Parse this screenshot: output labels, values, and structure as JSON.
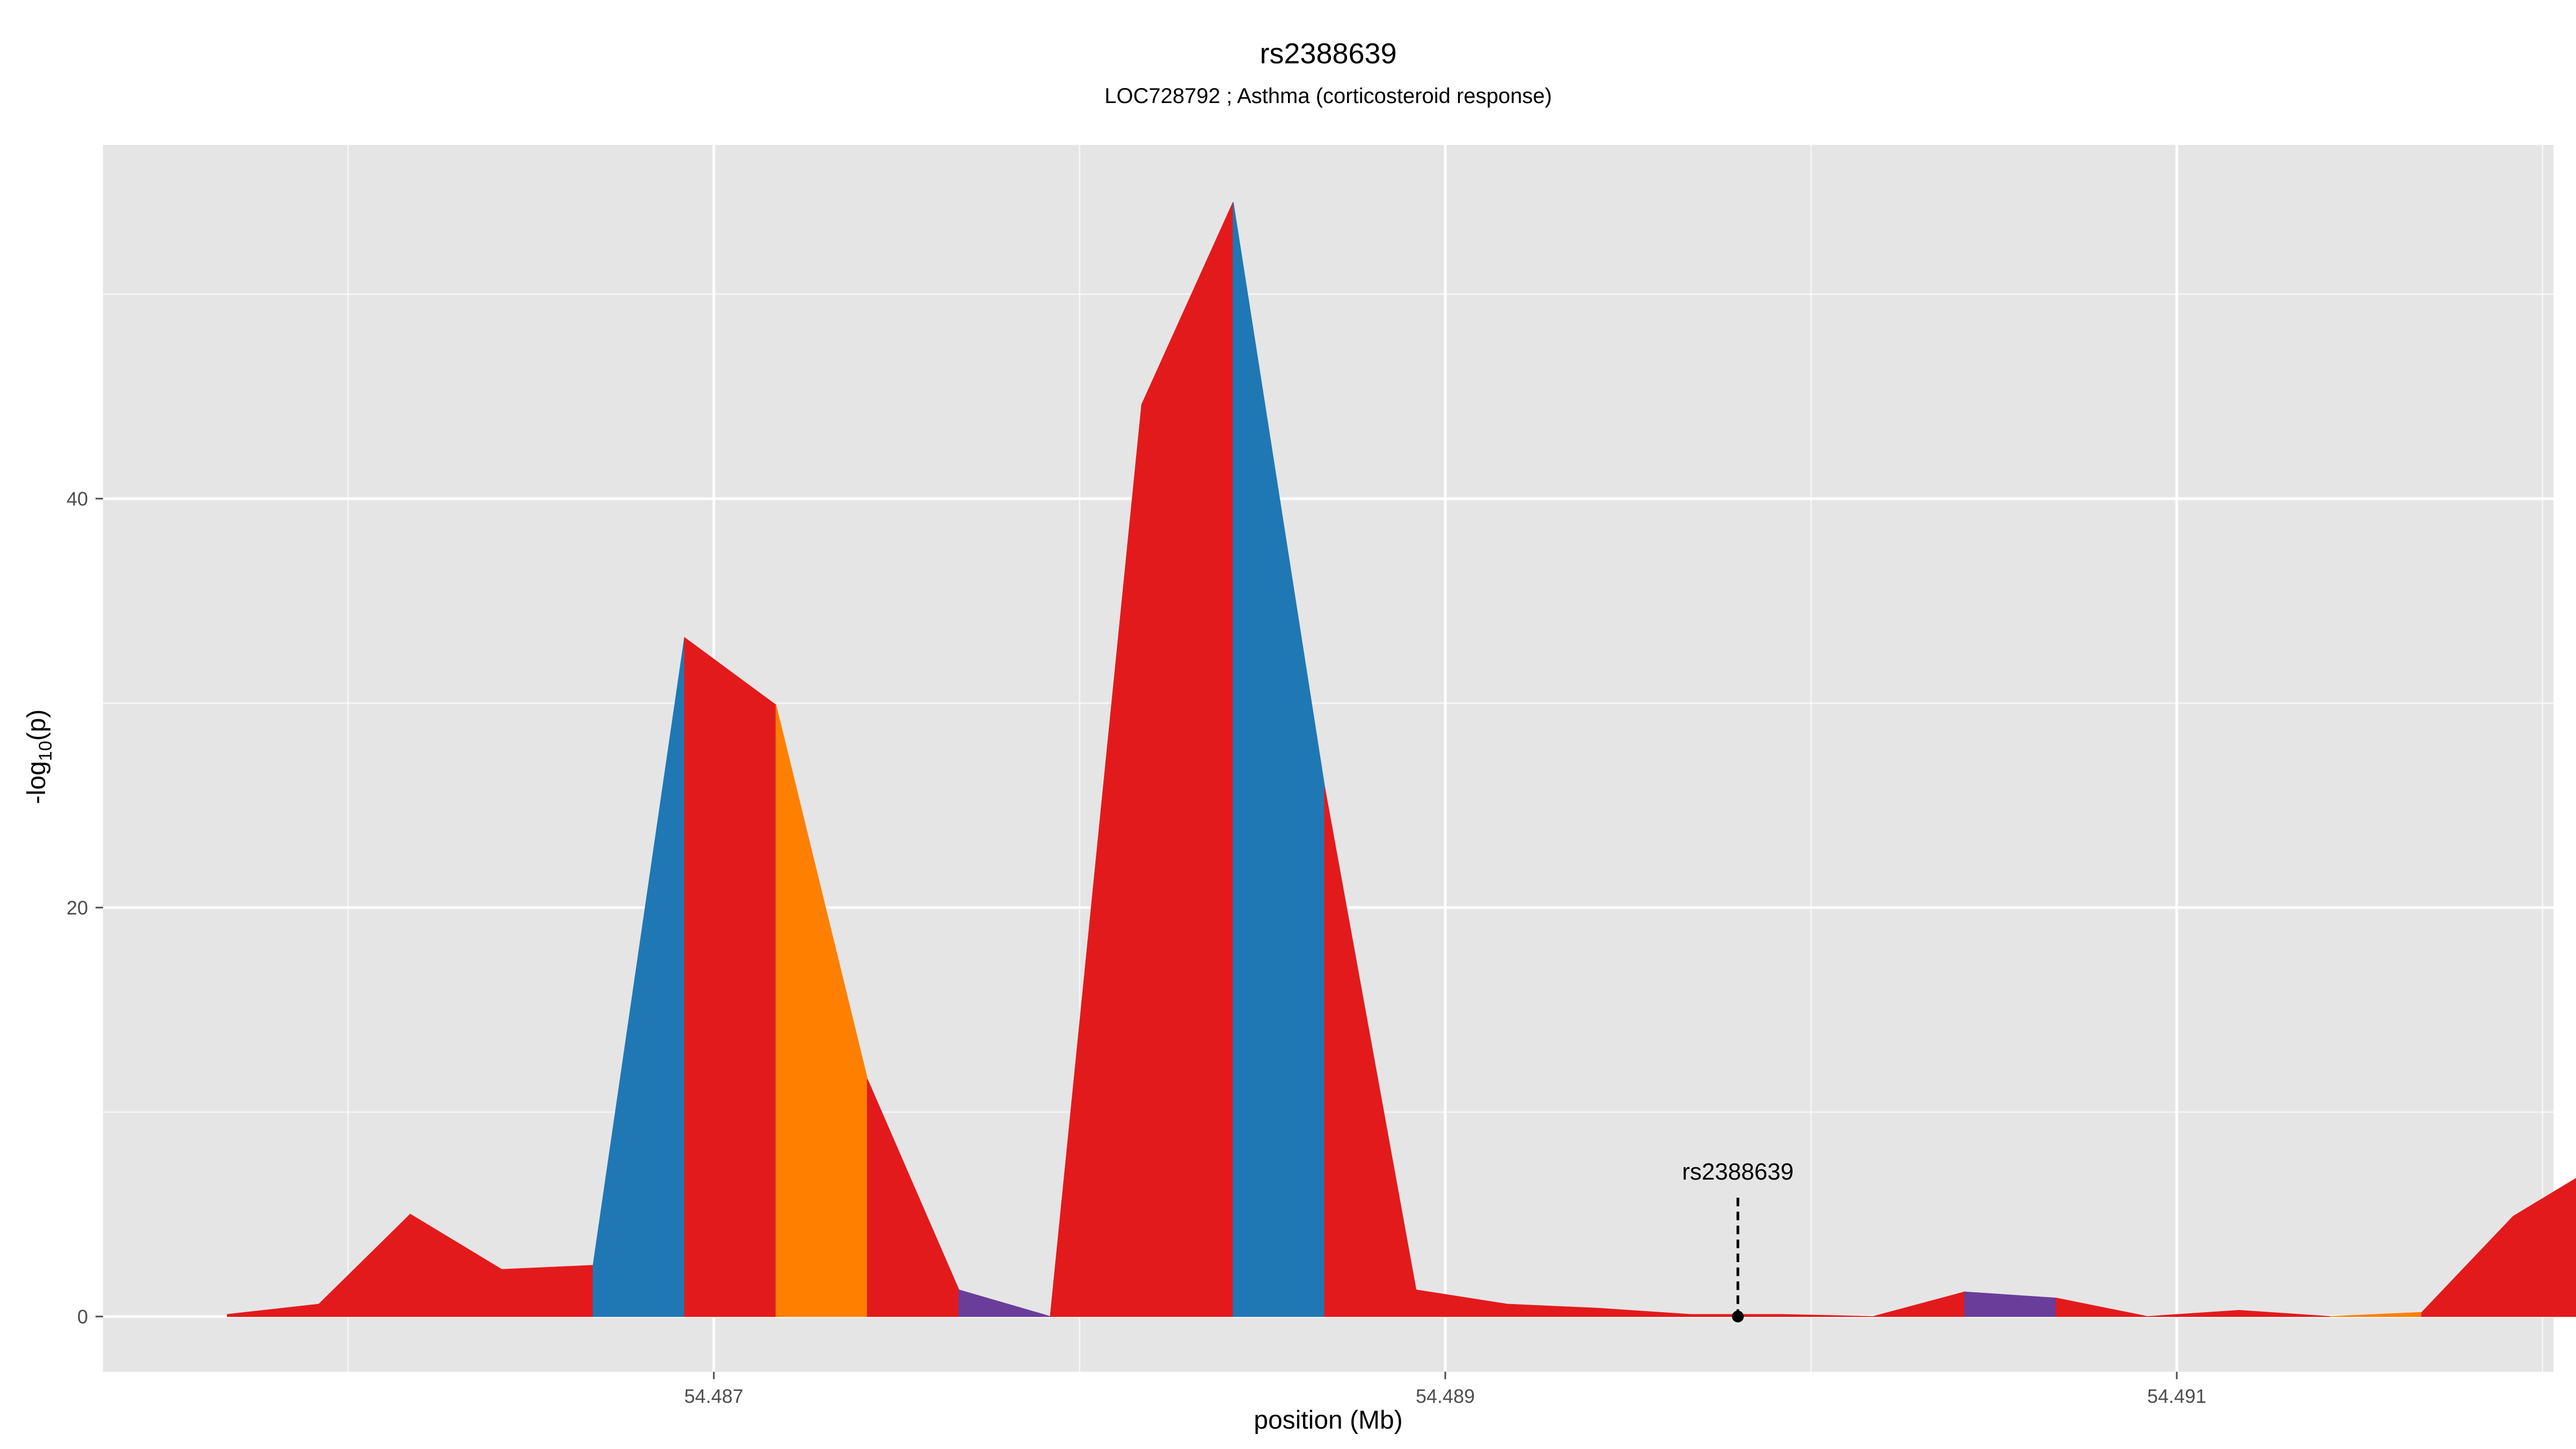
{
  "chart_data": {
    "type": "area",
    "title": "rs2388639",
    "subtitle": "LOC728792 ; Asthma (corticosteroid response)",
    "xlabel": "position (Mb)",
    "ylabel_main": "-log",
    "ylabel_sub": "10",
    "ylabel_tail": "(p)",
    "xlim": [
      54.48533,
      54.49203
    ],
    "ylim": [
      -2.7,
      57.3
    ],
    "x_ticks": [
      54.487,
      54.489,
      54.491
    ],
    "x_tick_labels": [
      "54.487",
      "54.489",
      "54.491"
    ],
    "x_minor_ticks": [
      54.486,
      54.488,
      54.49,
      54.492
    ],
    "y_ticks": [
      0,
      20,
      40
    ],
    "y_tick_labels": [
      "0",
      "20",
      "40"
    ],
    "y_minor_ticks": [
      10,
      30,
      50
    ],
    "grid": true,
    "colors": {
      "red": "#e31a1c",
      "blue": "#1f78b4",
      "orange": "#ff7f00",
      "purple": "#6a3d9a",
      "panel": "#e5e5e5",
      "grid": "#ffffff"
    },
    "series": [
      {
        "color": "red",
        "x": [
          54.48567,
          54.48592,
          54.48617,
          54.48642,
          54.48667
        ],
        "y": [
          0.1,
          0.6,
          5.0,
          2.3,
          2.5
        ]
      },
      {
        "color": "blue",
        "x": [
          54.48667,
          54.48692
        ],
        "y": [
          2.5,
          33.2
        ]
      },
      {
        "color": "red",
        "x": [
          54.48692,
          54.48717
        ],
        "y": [
          33.2,
          29.9
        ]
      },
      {
        "color": "orange",
        "x": [
          54.48717,
          54.48742
        ],
        "y": [
          29.9,
          11.6
        ]
      },
      {
        "color": "red",
        "x": [
          54.48742,
          54.48767
        ],
        "y": [
          11.6,
          1.3
        ]
      },
      {
        "color": "purple",
        "x": [
          54.48767,
          54.48792
        ],
        "y": [
          1.3,
          0.0
        ]
      },
      {
        "color": "red",
        "x": [
          54.48792,
          54.48817,
          54.48842
        ],
        "y": [
          0.0,
          44.6,
          54.5
        ]
      },
      {
        "color": "blue",
        "x": [
          54.48842,
          54.48867
        ],
        "y": [
          54.5,
          25.9
        ]
      },
      {
        "color": "red",
        "x": [
          54.48867,
          54.48892,
          54.48917,
          54.48942,
          54.48967,
          54.48992,
          54.49017
        ],
        "y": [
          25.9,
          1.3,
          0.6,
          0.4,
          0.1,
          0.1,
          0.0
        ]
      },
      {
        "color": "red",
        "x": [
          54.49017,
          54.49042
        ],
        "y": [
          0.0,
          1.2
        ]
      },
      {
        "color": "purple",
        "x": [
          54.49042,
          54.49067
        ],
        "y": [
          1.2,
          0.9
        ]
      },
      {
        "color": "red",
        "x": [
          54.49067,
          54.49092,
          54.49117,
          54.49142
        ],
        "y": [
          0.9,
          0.0,
          0.3,
          0.0
        ]
      },
      {
        "color": "orange",
        "x": [
          54.49142,
          54.49167
        ],
        "y": [
          0.0,
          0.2
        ]
      },
      {
        "color": "red",
        "x": [
          54.49167,
          54.49192,
          54.49217,
          54.49242
        ],
        "y": [
          0.2,
          4.9,
          7.6,
          2.0
        ]
      }
    ],
    "annotation": {
      "label": "rs2388639",
      "x": 54.4898,
      "y": 0.0,
      "label_y": 5.6
    }
  }
}
